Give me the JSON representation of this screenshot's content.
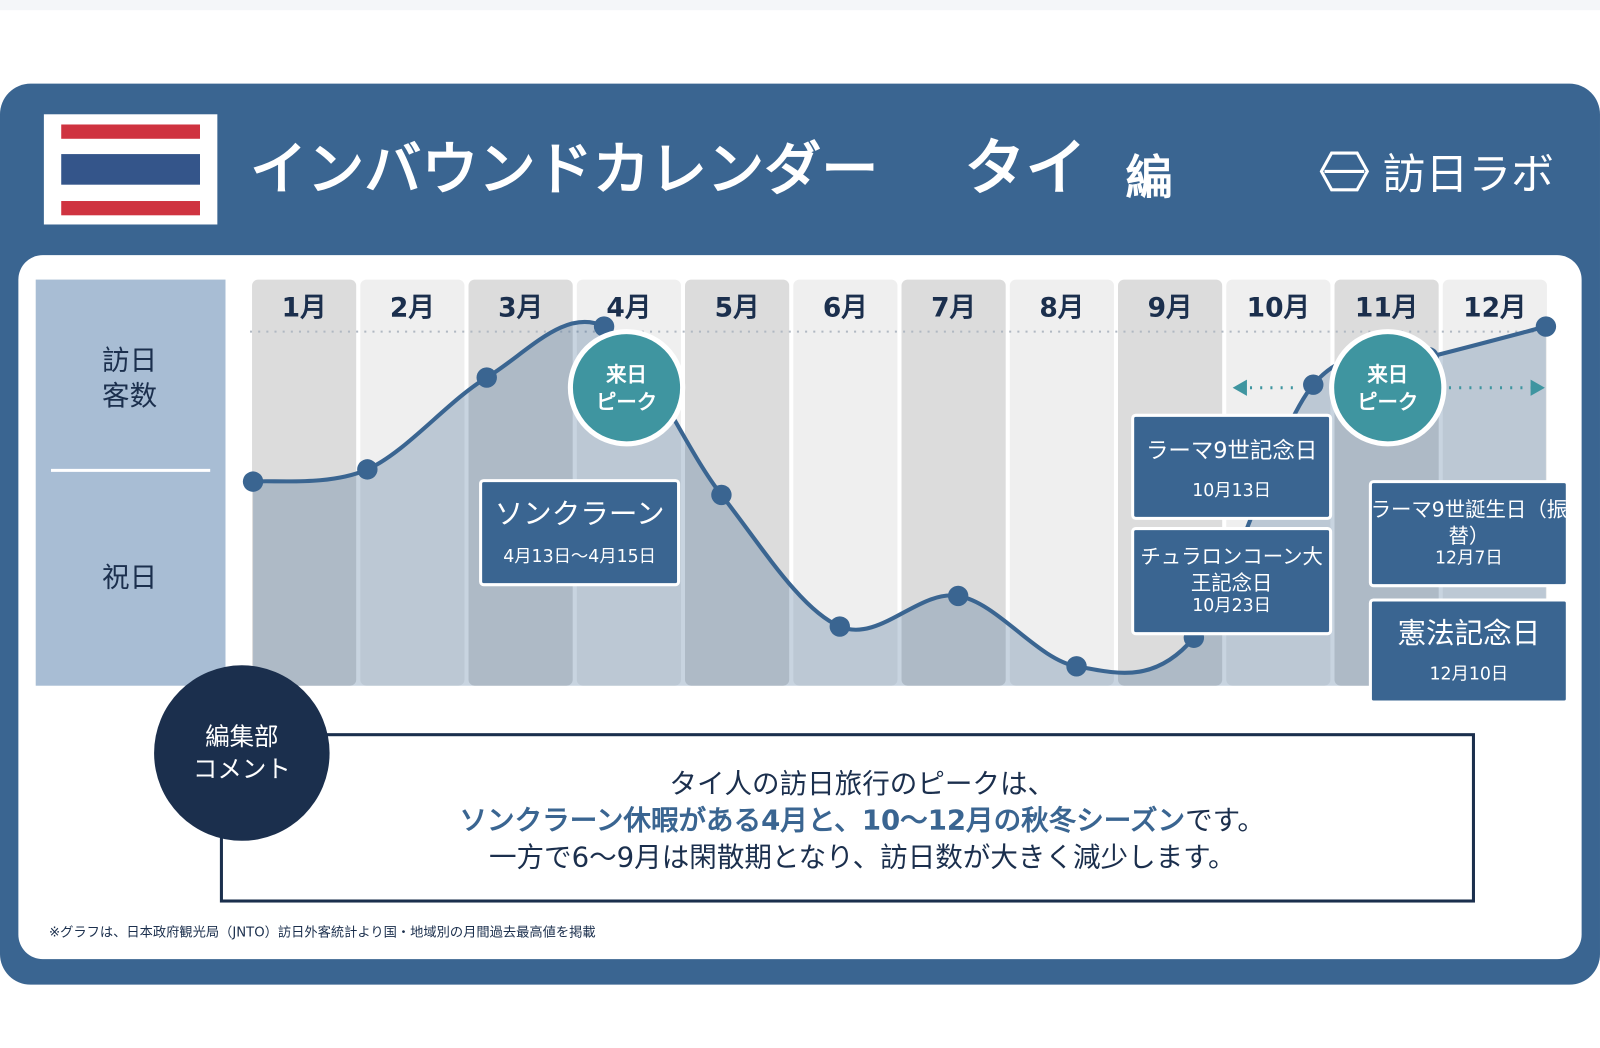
{
  "header": {
    "title": "インバウンドカレンダー",
    "country": "タイ",
    "suffix": "編",
    "logo": "訪日ラボ"
  },
  "row_labels": {
    "visitors": [
      "訪日",
      "客数"
    ],
    "holidays": "祝日"
  },
  "months": [
    "1月",
    "2月",
    "3月",
    "4月",
    "5月",
    "6月",
    "7月",
    "8月",
    "9月",
    "10月",
    "11月",
    "12月"
  ],
  "peaks": [
    {
      "lines": [
        "来日",
        "ピーク"
      ]
    },
    {
      "lines": [
        "来日",
        "ピーク"
      ]
    }
  ],
  "holidays": [
    {
      "name_lines": [
        "ソンクラーン"
      ],
      "date": "4月13日～4月15日"
    },
    {
      "name_lines": [
        "ラーマ9世記念日"
      ],
      "date": "10月13日"
    },
    {
      "name_lines": [
        "チュラロンコーン大",
        "王記念日"
      ],
      "date": "10月23日"
    },
    {
      "name_lines": [
        "ラーマ9世誕生日（振",
        "替）"
      ],
      "date": "12月7日"
    },
    {
      "name_lines": [
        "憲法記念日"
      ],
      "date": "12月10日"
    }
  ],
  "comment": {
    "badge": [
      "編集部",
      "コメント"
    ],
    "line1": "タイ人の訪日旅行のピークは、",
    "line2_highlight": "ソンクラーン休暇がある4月と、10～12月の秋冬シーズン",
    "line2_rest": "です。",
    "line3": "一方で6～9月は閑散期となり、訪日数が大きく減少します。"
  },
  "footnote": "※グラフは、日本政府観光局（JNTO）訪日外客統計より国・地域別の月間過去最高値を掲載"
}
